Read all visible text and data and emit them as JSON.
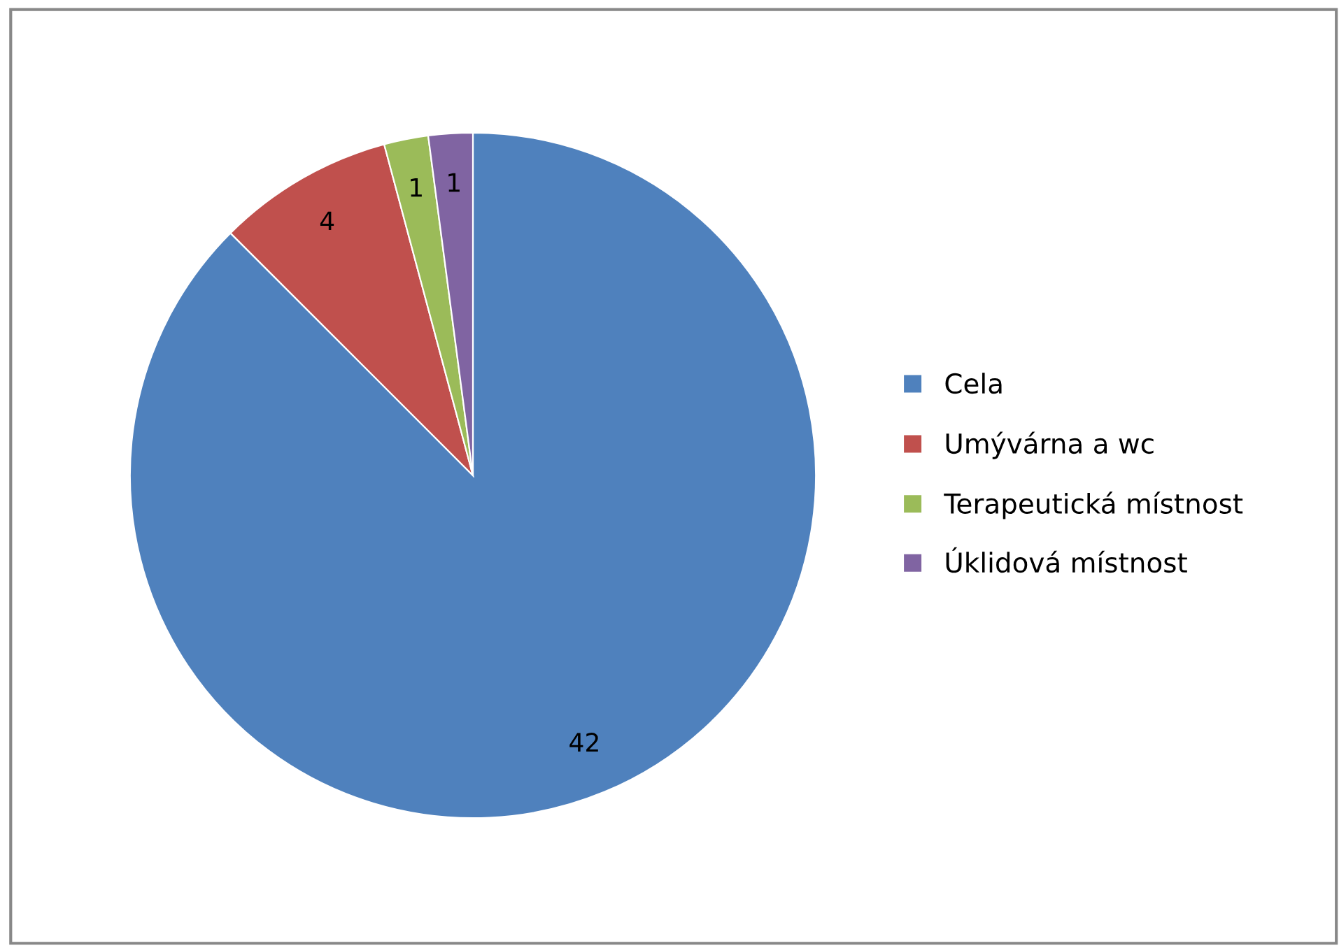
{
  "chart_data": {
    "type": "pie",
    "categories": [
      "Cela",
      "Umývárna a wc",
      "Terapeutická místnost",
      "Úklidová místnost"
    ],
    "values": [
      42,
      4,
      1,
      1
    ],
    "colors": [
      "#4f81bd",
      "#c0504d",
      "#9bbb59",
      "#8064a2"
    ],
    "data_labels": true,
    "legend": "right"
  }
}
